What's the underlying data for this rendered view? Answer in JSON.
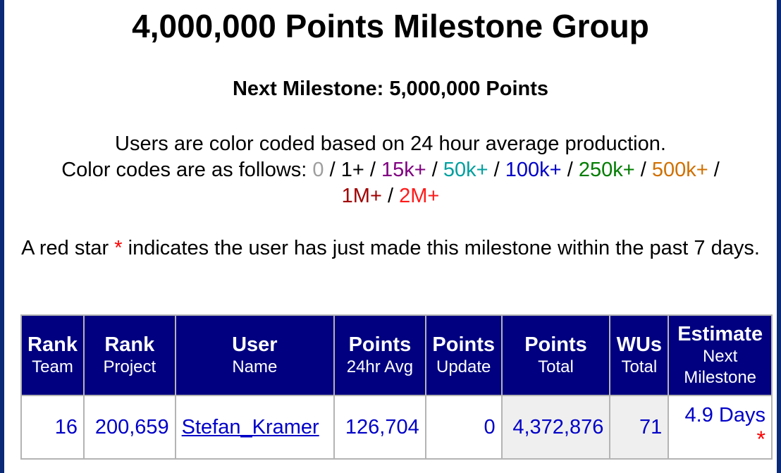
{
  "title": "4,000,000 Points Milestone Group",
  "next_milestone": "Next Milestone: 5,000,000 Points",
  "color_intro": "Users are color coded based on 24 hour average production.",
  "color_codes_label": "Color codes are as follows:",
  "color_codes": [
    {
      "label": "0",
      "color": "#9e9e9e"
    },
    {
      "label": "1+",
      "color": "#000000"
    },
    {
      "label": "15k+",
      "color": "#800080"
    },
    {
      "label": "50k+",
      "color": "#009f9f"
    },
    {
      "label": "100k+",
      "color": "#0000c8"
    },
    {
      "label": "250k+",
      "color": "#007d00"
    },
    {
      "label": "500k+",
      "color": "#d07000"
    },
    {
      "label": "1M+",
      "color": "#a00000"
    },
    {
      "label": "2M+",
      "color": "#ff1a1a"
    }
  ],
  "separator": "/",
  "star_note": {
    "prefix": "A red star",
    "star": "*",
    "suffix": "indicates the user has just made this milestone within the past 7 days."
  },
  "table": {
    "headers": [
      {
        "top": "Rank",
        "bottom": "Team"
      },
      {
        "top": "Rank",
        "bottom": "Project"
      },
      {
        "top": "User",
        "bottom": "Name"
      },
      {
        "top": "Points",
        "bottom": "24hr Avg"
      },
      {
        "top": "Points",
        "bottom": "Update"
      },
      {
        "top": "Points",
        "bottom": "Total"
      },
      {
        "top": "WUs",
        "bottom": "Total"
      },
      {
        "top": "Estimate",
        "bottom": "Next Milestone"
      }
    ],
    "rows": [
      {
        "rank_team": "16",
        "rank_project": "200,659",
        "user_name": "Stefan_Kramer",
        "points_24hr_avg": "126,704",
        "points_update": "0",
        "points_total": "4,372,876",
        "wus_total": "71",
        "estimate": "4.9 Days",
        "star": "*"
      }
    ]
  },
  "colors": {
    "frame_border": "#0a2a78",
    "header_bg": "#000080",
    "data_text": "#0000c8",
    "shaded_cell": "#efefef"
  }
}
